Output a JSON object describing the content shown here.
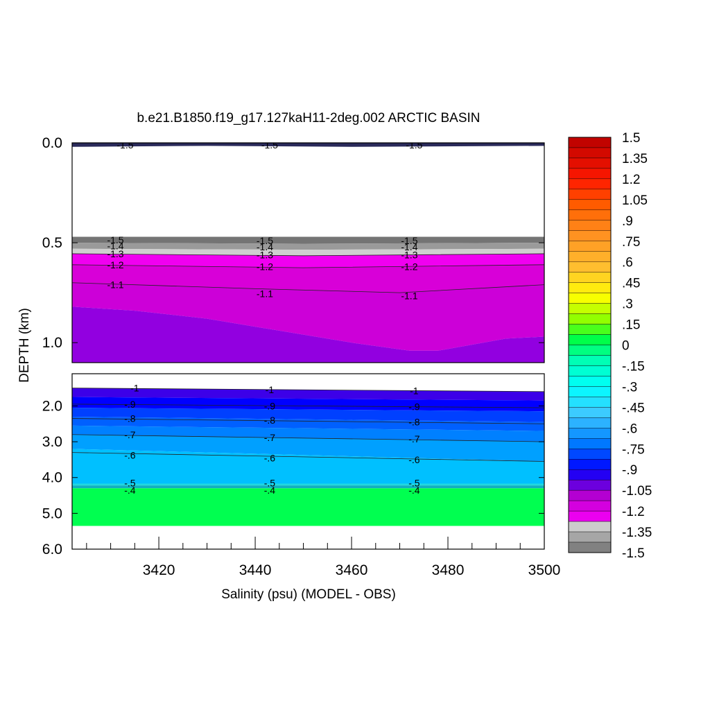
{
  "chart_data": {
    "type": "heatmap",
    "title": "b.e21.B1850.f19_g17.127kaH11-2deg.002 ARCTIC BASIN",
    "xlabel": "Salinity (psu) (MODEL - OBS)",
    "ylabel": "DEPTH (km)",
    "xlim": [
      3402,
      3500
    ],
    "x_ticks": [
      "3420",
      "3440",
      "3460",
      "3480",
      "3500"
    ],
    "x_tick_values": [
      3420,
      3440,
      3460,
      3480,
      3500
    ],
    "panels": [
      {
        "name": "upper",
        "ylim": [
          0.0,
          1.1
        ],
        "y_ticks": [
          "0.0",
          "0.5",
          "1.0"
        ],
        "y_tick_values": [
          0.0,
          0.5,
          1.0
        ]
      },
      {
        "name": "lower",
        "ylim": [
          1.1,
          6.0
        ],
        "y_ticks": [
          "2.0",
          "3.0",
          "4.0",
          "5.0",
          "6.0"
        ],
        "y_tick_values": [
          2.0,
          3.0,
          4.0,
          5.0,
          6.0
        ]
      }
    ],
    "colorbar": {
      "min": -1.5,
      "max": 1.5,
      "step": 0.075,
      "labels": [
        "1.5",
        "1.35",
        "1.2",
        "1.05",
        ".9",
        ".75",
        ".6",
        ".45",
        ".3",
        ".15",
        "0",
        "-.15",
        "-.3",
        "-.45",
        "-.6",
        "-.75",
        "-.9",
        "-1.05",
        "-1.2",
        "-1.35",
        "-1.5"
      ],
      "label_values": [
        1.5,
        1.35,
        1.2,
        1.05,
        0.9,
        0.75,
        0.6,
        0.45,
        0.3,
        0.15,
        0,
        -0.15,
        -0.3,
        -0.45,
        -0.6,
        -0.75,
        -0.9,
        -1.05,
        -1.2,
        -1.35,
        -1.5
      ]
    },
    "layers": [
      {
        "value": -1.5,
        "color": "#2a2a5a",
        "top": [
          [
            3402,
            0.0
          ],
          [
            3500,
            0.0
          ]
        ],
        "bottom": [
          [
            3402,
            0.02
          ],
          [
            3430,
            0.015
          ],
          [
            3460,
            0.02
          ],
          [
            3500,
            0.015
          ]
        ]
      },
      {
        "value": -1.45,
        "color": "#747474",
        "top": [
          [
            3402,
            0.47
          ],
          [
            3500,
            0.47
          ]
        ],
        "bottom": [
          [
            3402,
            0.5
          ],
          [
            3450,
            0.505
          ],
          [
            3500,
            0.5
          ]
        ]
      },
      {
        "value": -1.4,
        "color": "#9a9a9a",
        "top": [
          [
            3402,
            0.5
          ],
          [
            3450,
            0.505
          ],
          [
            3500,
            0.5
          ]
        ],
        "bottom": [
          [
            3402,
            0.53
          ],
          [
            3450,
            0.535
          ],
          [
            3500,
            0.53
          ]
        ]
      },
      {
        "value": -1.35,
        "color": "#cfcfcf",
        "top": [
          [
            3402,
            0.53
          ],
          [
            3450,
            0.535
          ],
          [
            3500,
            0.53
          ]
        ],
        "bottom": [
          [
            3402,
            0.555
          ],
          [
            3450,
            0.565
          ],
          [
            3500,
            0.555
          ]
        ]
      },
      {
        "value": -1.25,
        "color": "#f000f0",
        "top": [
          [
            3402,
            0.555
          ],
          [
            3450,
            0.565
          ],
          [
            3500,
            0.555
          ]
        ],
        "bottom": [
          [
            3402,
            0.61
          ],
          [
            3450,
            0.625
          ],
          [
            3500,
            0.61
          ]
        ]
      },
      {
        "value": -1.15,
        "color": "#d800d8",
        "top": [
          [
            3402,
            0.61
          ],
          [
            3450,
            0.625
          ],
          [
            3500,
            0.61
          ]
        ],
        "bottom": [
          [
            3402,
            0.7
          ],
          [
            3440,
            0.73
          ],
          [
            3470,
            0.75
          ],
          [
            3500,
            0.71
          ]
        ]
      },
      {
        "value": -1.1,
        "color": "#cc00d8",
        "top": [
          [
            3402,
            0.7
          ],
          [
            3440,
            0.73
          ],
          [
            3470,
            0.75
          ],
          [
            3500,
            0.71
          ]
        ],
        "bottom": [
          [
            3402,
            0.82
          ],
          [
            3415,
            0.84
          ],
          [
            3430,
            0.88
          ],
          [
            3445,
            0.94
          ],
          [
            3460,
            1.0
          ],
          [
            3472,
            1.04
          ],
          [
            3478,
            1.04
          ],
          [
            3485,
            1.01
          ],
          [
            3492,
            0.98
          ],
          [
            3500,
            0.97
          ]
        ]
      },
      {
        "value": -1.05,
        "color": "#9200e0",
        "top": [
          [
            3402,
            0.82
          ],
          [
            3415,
            0.84
          ],
          [
            3430,
            0.88
          ],
          [
            3445,
            0.94
          ],
          [
            3460,
            1.0
          ],
          [
            3472,
            1.04
          ],
          [
            3478,
            1.04
          ],
          [
            3485,
            1.01
          ],
          [
            3492,
            0.98
          ],
          [
            3500,
            0.97
          ]
        ],
        "bottom": [
          [
            3402,
            1.1
          ],
          [
            3500,
            1.1
          ]
        ]
      },
      {
        "value": -1.05,
        "color": "#8a00e0",
        "top": [
          [
            3402,
            1.1
          ],
          [
            3500,
            1.1
          ]
        ],
        "bottom": [
          [
            3402,
            1.5
          ],
          [
            3500,
            1.6
          ]
        ]
      },
      {
        "value": -0.95,
        "color": "#3c00e8",
        "top": [
          [
            3402,
            1.5
          ],
          [
            3500,
            1.6
          ]
        ],
        "bottom": [
          [
            3402,
            1.75
          ],
          [
            3500,
            1.85
          ]
        ]
      },
      {
        "value": -0.9,
        "color": "#0000ff",
        "top": [
          [
            3402,
            1.75
          ],
          [
            3500,
            1.85
          ]
        ],
        "bottom": [
          [
            3402,
            2.05
          ],
          [
            3500,
            2.15
          ]
        ]
      },
      {
        "value": -0.85,
        "color": "#0040ff",
        "top": [
          [
            3402,
            2.05
          ],
          [
            3500,
            2.15
          ]
        ],
        "bottom": [
          [
            3402,
            2.3
          ],
          [
            3500,
            2.45
          ]
        ]
      },
      {
        "value": -0.8,
        "color": "#0060ff",
        "top": [
          [
            3402,
            2.3
          ],
          [
            3500,
            2.45
          ]
        ],
        "bottom": [
          [
            3402,
            2.55
          ],
          [
            3500,
            2.7
          ]
        ]
      },
      {
        "value": -0.75,
        "color": "#0080ff",
        "top": [
          [
            3402,
            2.55
          ],
          [
            3500,
            2.7
          ]
        ],
        "bottom": [
          [
            3402,
            2.8
          ],
          [
            3500,
            3.0
          ]
        ]
      },
      {
        "value": -0.7,
        "color": "#00a0ff",
        "top": [
          [
            3402,
            2.8
          ],
          [
            3500,
            3.0
          ]
        ],
        "bottom": [
          [
            3402,
            3.2
          ],
          [
            3500,
            3.55
          ]
        ]
      },
      {
        "value": -0.6,
        "color": "#00c0ff",
        "top": [
          [
            3402,
            3.2
          ],
          [
            3500,
            3.55
          ]
        ],
        "bottom": [
          [
            3402,
            4.17
          ],
          [
            3500,
            4.17
          ]
        ]
      },
      {
        "value": -0.5,
        "color": "#20d8e0",
        "top": [
          [
            3402,
            4.17
          ],
          [
            3500,
            4.17
          ]
        ],
        "bottom": [
          [
            3402,
            4.22
          ],
          [
            3500,
            4.22
          ]
        ]
      },
      {
        "value": -0.4,
        "color": "#10b0c0",
        "top": [
          [
            3402,
            4.22
          ],
          [
            3500,
            4.22
          ]
        ],
        "bottom": [
          [
            3402,
            4.3
          ],
          [
            3500,
            4.3
          ]
        ]
      },
      {
        "value": 0.05,
        "color": "#00ff50",
        "top": [
          [
            3402,
            4.3
          ],
          [
            3500,
            4.3
          ]
        ],
        "bottom": [
          [
            3402,
            5.35
          ],
          [
            3500,
            5.35
          ]
        ]
      }
    ],
    "contour_lines": [
      {
        "value": -1.3,
        "points": [
          [
            3402,
            0.555
          ],
          [
            3450,
            0.565
          ],
          [
            3500,
            0.555
          ]
        ]
      },
      {
        "value": -1.2,
        "points": [
          [
            3402,
            0.61
          ],
          [
            3450,
            0.625
          ],
          [
            3500,
            0.61
          ]
        ]
      },
      {
        "value": -1.1,
        "points": [
          [
            3402,
            0.7
          ],
          [
            3440,
            0.73
          ],
          [
            3470,
            0.75
          ],
          [
            3500,
            0.71
          ]
        ]
      },
      {
        "value": -1.0,
        "points": [
          [
            3402,
            1.5
          ],
          [
            3500,
            1.6
          ]
        ]
      },
      {
        "value": -0.9,
        "points": [
          [
            3402,
            1.95
          ],
          [
            3500,
            2.05
          ]
        ]
      },
      {
        "value": -0.8,
        "points": [
          [
            3402,
            2.35
          ],
          [
            3500,
            2.5
          ]
        ]
      },
      {
        "value": -0.7,
        "points": [
          [
            3402,
            2.8
          ],
          [
            3500,
            3.0
          ]
        ]
      },
      {
        "value": -0.6,
        "points": [
          [
            3402,
            3.3
          ],
          [
            3500,
            3.55
          ]
        ]
      }
    ],
    "contour_labels": [
      {
        "text": "-1.5",
        "x": 3413,
        "y": 0.01
      },
      {
        "text": "-1.5",
        "x": 3443,
        "y": 0.01
      },
      {
        "text": "-1.5",
        "x": 3473,
        "y": 0.01
      },
      {
        "text": "-1.5",
        "x": 3411,
        "y": 0.485
      },
      {
        "text": "-1.5",
        "x": 3442,
        "y": 0.49
      },
      {
        "text": "-1.5",
        "x": 3472,
        "y": 0.49
      },
      {
        "text": "-1.4",
        "x": 3411,
        "y": 0.515
      },
      {
        "text": "-1.4",
        "x": 3442,
        "y": 0.52
      },
      {
        "text": "-1.4",
        "x": 3472,
        "y": 0.52
      },
      {
        "text": "-1.3",
        "x": 3411,
        "y": 0.555
      },
      {
        "text": "-1.3",
        "x": 3442,
        "y": 0.56
      },
      {
        "text": "-1.3",
        "x": 3472,
        "y": 0.56
      },
      {
        "text": "-1.2",
        "x": 3411,
        "y": 0.61
      },
      {
        "text": "-1.2",
        "x": 3442,
        "y": 0.62
      },
      {
        "text": "-1.2",
        "x": 3472,
        "y": 0.62
      },
      {
        "text": "-1.1",
        "x": 3411,
        "y": 0.71
      },
      {
        "text": "-1.1",
        "x": 3442,
        "y": 0.755
      },
      {
        "text": "-1.1",
        "x": 3472,
        "y": 0.765
      },
      {
        "text": "-1",
        "x": 3415,
        "y": 1.5
      },
      {
        "text": "-1",
        "x": 3443,
        "y": 1.55
      },
      {
        "text": "-1",
        "x": 3473,
        "y": 1.57
      },
      {
        "text": "-.9",
        "x": 3414,
        "y": 1.95
      },
      {
        "text": "-.9",
        "x": 3443,
        "y": 2.0
      },
      {
        "text": "-.9",
        "x": 3473,
        "y": 2.02
      },
      {
        "text": "-.8",
        "x": 3414,
        "y": 2.35
      },
      {
        "text": "-.8",
        "x": 3443,
        "y": 2.4
      },
      {
        "text": "-.8",
        "x": 3473,
        "y": 2.45
      },
      {
        "text": "-.7",
        "x": 3414,
        "y": 2.8
      },
      {
        "text": "-.7",
        "x": 3443,
        "y": 2.88
      },
      {
        "text": "-.7",
        "x": 3473,
        "y": 2.92
      },
      {
        "text": "-.6",
        "x": 3414,
        "y": 3.38
      },
      {
        "text": "-.6",
        "x": 3443,
        "y": 3.45
      },
      {
        "text": "-.6",
        "x": 3473,
        "y": 3.5
      },
      {
        "text": "-.5",
        "x": 3414,
        "y": 4.15
      },
      {
        "text": "-.5",
        "x": 3443,
        "y": 4.15
      },
      {
        "text": "-.5",
        "x": 3473,
        "y": 4.15
      },
      {
        "text": "-.4",
        "x": 3414,
        "y": 4.35
      },
      {
        "text": "-.4",
        "x": 3443,
        "y": 4.35
      },
      {
        "text": "-.4",
        "x": 3473,
        "y": 4.35
      }
    ]
  }
}
